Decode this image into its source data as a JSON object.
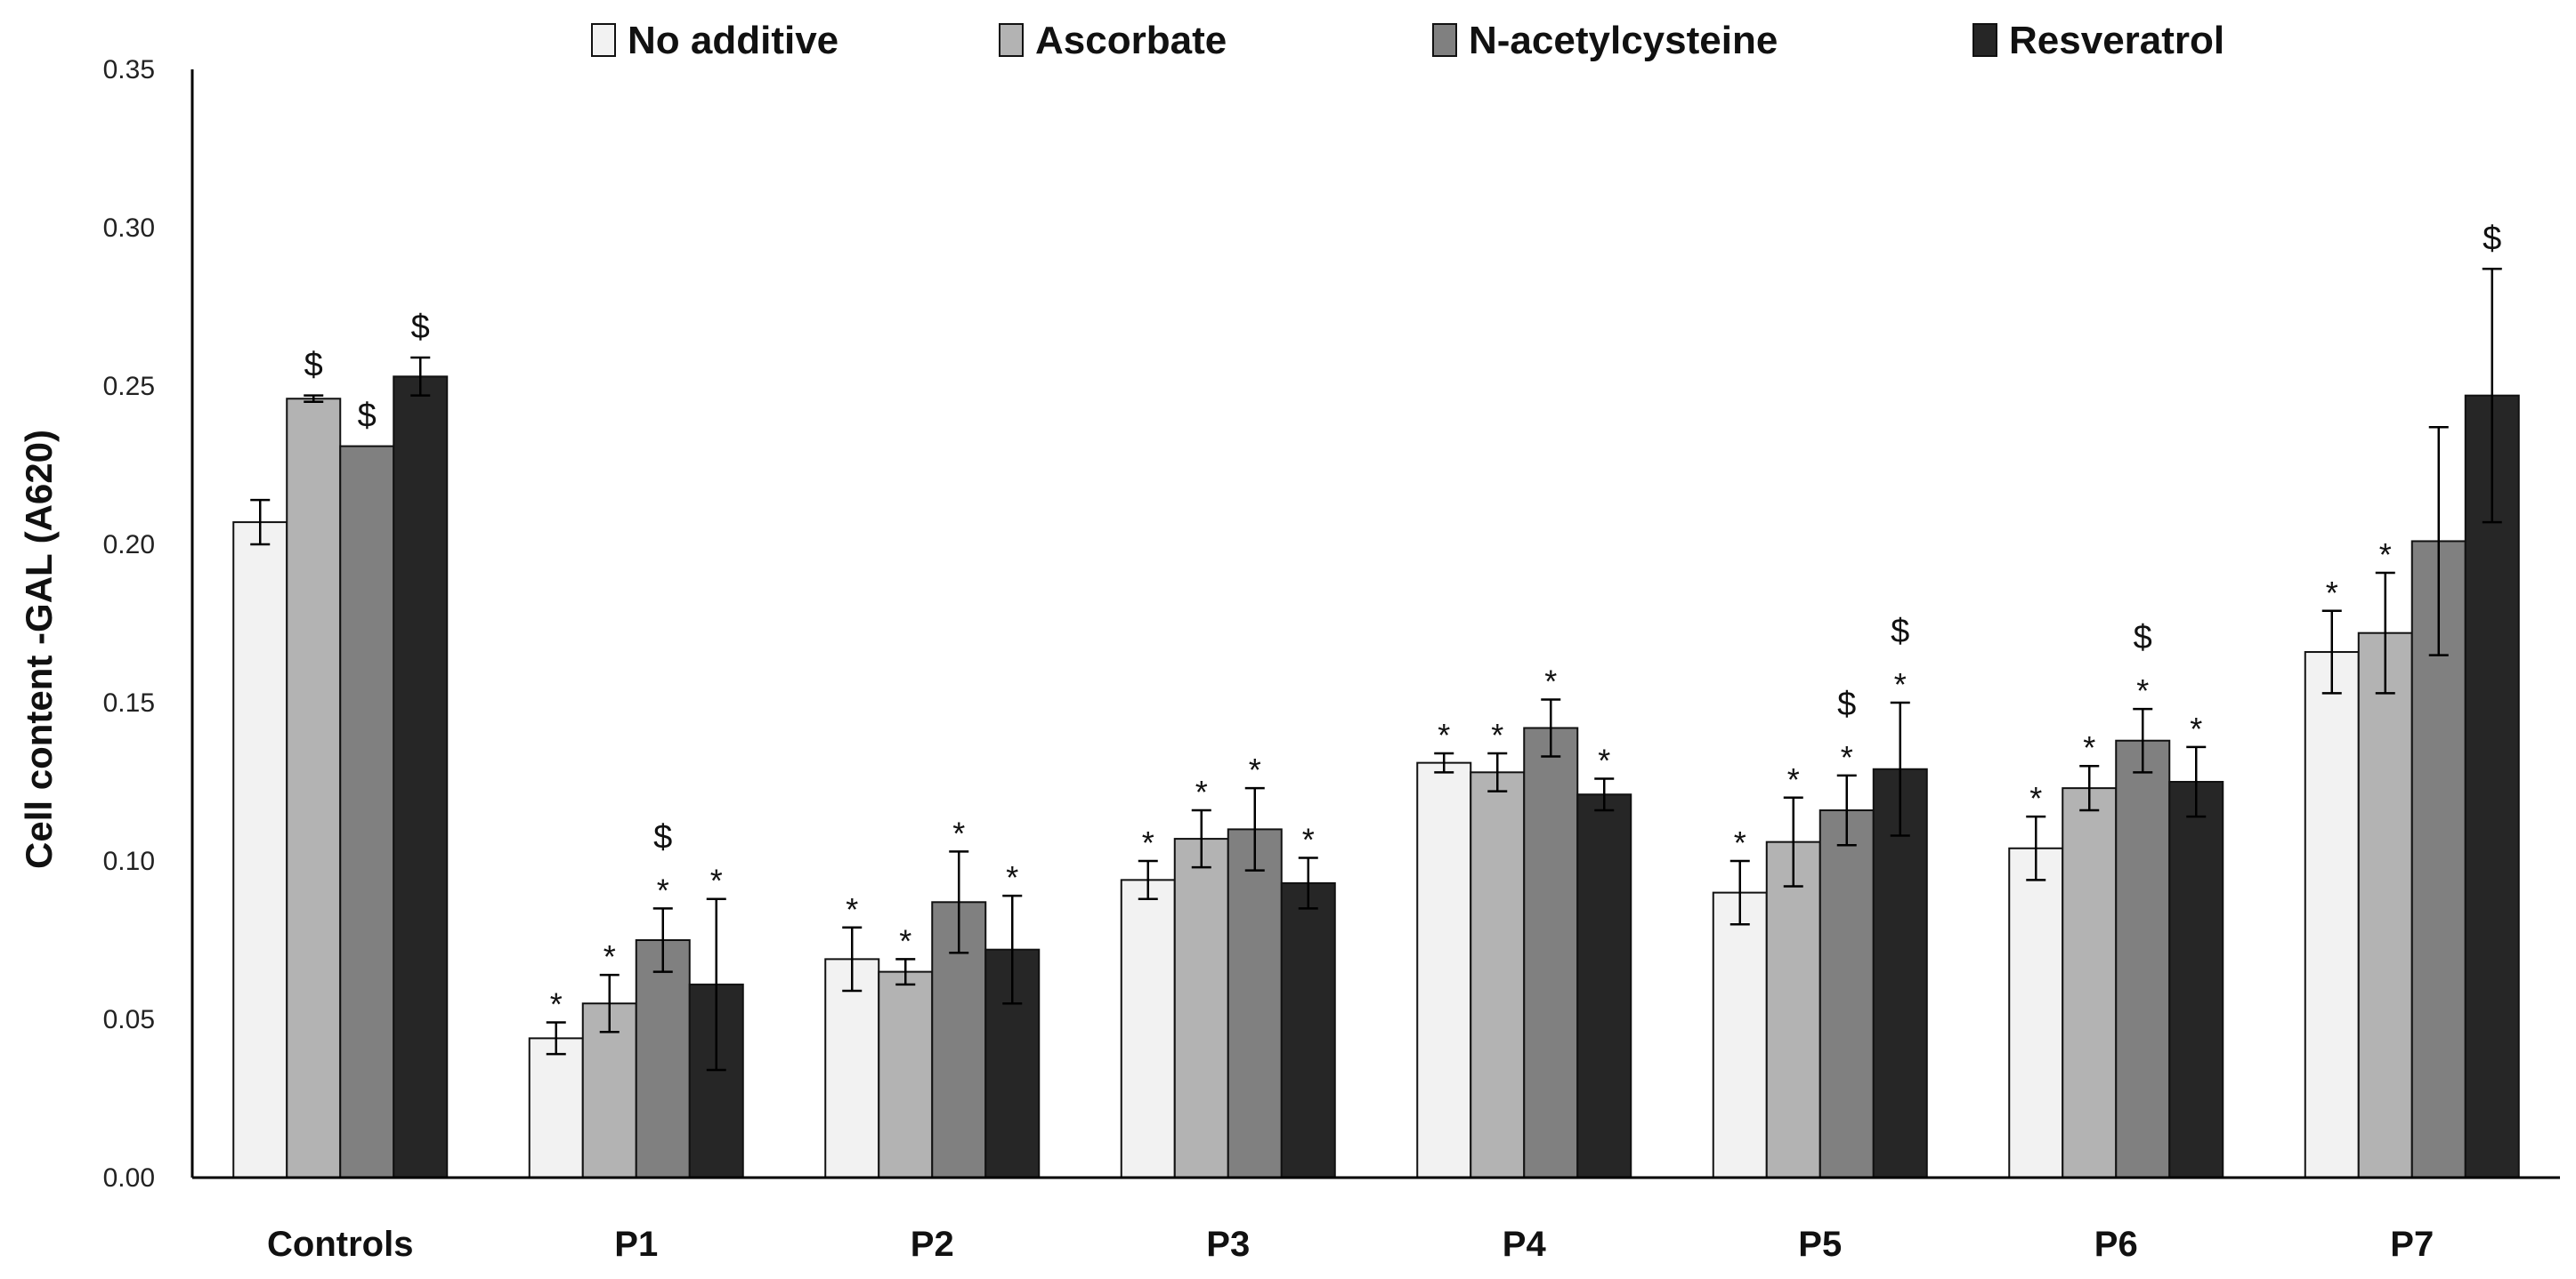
{
  "chart_data": {
    "type": "bar",
    "title": "",
    "xlabel": "",
    "ylabel": "Cell content -GAL  (A620)",
    "ylim": [
      0,
      0.35
    ],
    "yticks": [
      "0.00",
      "0.05",
      "0.10",
      "0.15",
      "0.20",
      "0.25",
      "0.30",
      "0.35"
    ],
    "grid": false,
    "legend_position": "top-center",
    "categories": [
      "Controls",
      "P1",
      "P2",
      "P3",
      "P4",
      "P5",
      "P6",
      "P7"
    ],
    "series": [
      {
        "name": "No additive",
        "color": "#f2f2f2",
        "values": [
          0.207,
          0.044,
          0.069,
          0.094,
          0.131,
          0.09,
          0.104,
          0.166
        ],
        "errors": [
          0.007,
          0.005,
          0.01,
          0.006,
          0.003,
          0.01,
          0.01,
          0.013
        ],
        "annotations": [
          "",
          "*",
          "*",
          "*",
          "*",
          "*",
          "*",
          "*"
        ]
      },
      {
        "name": "Ascorbate",
        "color": "#b3b3b3",
        "values": [
          0.246,
          0.055,
          0.065,
          0.107,
          0.128,
          0.106,
          0.123,
          0.172
        ],
        "errors": [
          0.001,
          0.009,
          0.004,
          0.009,
          0.006,
          0.014,
          0.007,
          0.019
        ],
        "annotations": [
          "$",
          "*",
          "*",
          "*",
          "*",
          "*",
          "*",
          "*"
        ]
      },
      {
        "name": "N-acetylcysteine",
        "color": "#808080",
        "values": [
          0.231,
          0.075,
          0.087,
          0.11,
          0.142,
          0.116,
          0.138,
          0.201
        ],
        "errors": [
          0.0,
          0.01,
          0.016,
          0.013,
          0.009,
          0.011,
          0.01,
          0.036
        ],
        "annotations": [
          "$",
          "*\n$",
          "*",
          "*",
          "*",
          "*\n$",
          "*\n$",
          ""
        ]
      },
      {
        "name": "Resveratrol",
        "color": "#262626",
        "values": [
          0.253,
          0.061,
          0.072,
          0.093,
          0.121,
          0.129,
          0.125,
          0.247
        ],
        "errors": [
          0.006,
          0.027,
          0.017,
          0.008,
          0.005,
          0.021,
          0.011,
          0.04
        ],
        "annotations": [
          "$",
          "*",
          "*",
          "*",
          "*",
          "*\n$",
          "*",
          "$"
        ]
      }
    ]
  }
}
